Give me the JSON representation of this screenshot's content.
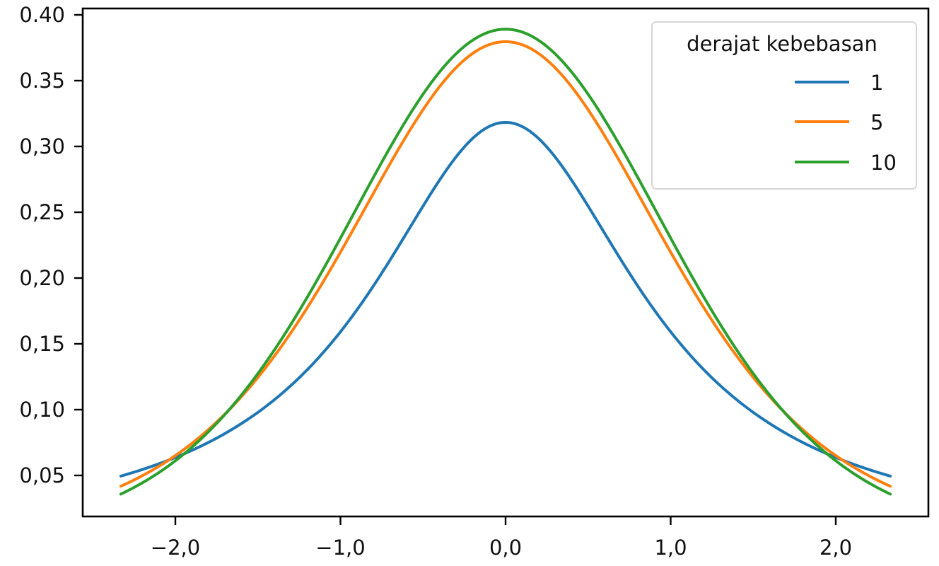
{
  "chart_data": {
    "type": "line",
    "title": "",
    "xlabel": "",
    "ylabel": "",
    "xlim": [
      -2.55,
      2.55
    ],
    "ylim": [
      0.027,
      0.41
    ],
    "grid": false,
    "legend_position": "upper right",
    "legend_title": "derajat kebebasan",
    "x_ticks": [
      -2.0,
      -1.0,
      0.0,
      1.0,
      2.0
    ],
    "x_tick_labels": [
      "−2,0",
      "−1,0",
      "0,0",
      "1,0",
      "2,0"
    ],
    "y_ticks": [
      0.05,
      0.1,
      0.15,
      0.2,
      0.25,
      0.3,
      0.35,
      0.4
    ],
    "y_tick_labels": [
      "0,05",
      "0,10",
      "0,15",
      "0,20",
      "0,25",
      "0,30",
      "0.35",
      "0.40"
    ],
    "x_range": [
      -2.33,
      2.33
    ],
    "x": [
      -2.33,
      -2.0,
      -1.5,
      -1.0,
      -0.5,
      0.0,
      0.5,
      1.0,
      1.5,
      2.0,
      2.33
    ],
    "series": [
      {
        "name": "1",
        "df": 1,
        "color": "#1f77b4",
        "values": [
          0.05,
          0.064,
          0.098,
          0.159,
          0.255,
          0.318,
          0.255,
          0.159,
          0.098,
          0.064,
          0.05
        ]
      },
      {
        "name": "5",
        "df": 5,
        "color": "#ff7f0e",
        "values": [
          0.043,
          0.065,
          0.124,
          0.22,
          0.32,
          0.38,
          0.32,
          0.22,
          0.124,
          0.065,
          0.043
        ]
      },
      {
        "name": "10",
        "df": 10,
        "color": "#2ca02c",
        "values": [
          0.037,
          0.061,
          0.127,
          0.23,
          0.34,
          0.389,
          0.34,
          0.23,
          0.127,
          0.061,
          0.037
        ]
      }
    ]
  },
  "legend": {
    "title": "derajat kebebasan",
    "items": [
      {
        "label": "1",
        "color": "#1f77b4"
      },
      {
        "label": "5",
        "color": "#ff7f0e"
      },
      {
        "label": "10",
        "color": "#2ca02c"
      }
    ]
  }
}
